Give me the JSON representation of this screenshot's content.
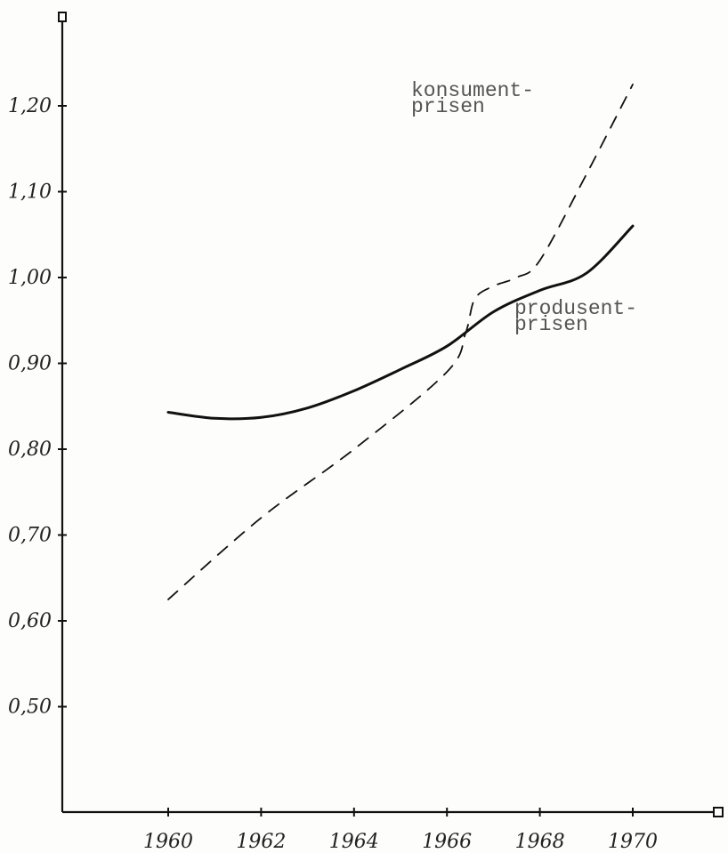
{
  "chart_data": {
    "type": "line",
    "title": "",
    "xlabel": "",
    "ylabel": "",
    "grid": false,
    "xlim": [
      1958.5,
      1972
    ],
    "ylim": [
      0.38,
      1.31
    ],
    "x_ticks": [
      1960,
      1962,
      1964,
      1966,
      1968,
      1970
    ],
    "x_tick_labels": [
      "1960",
      "1962",
      "1964",
      "1966",
      "1968",
      "1970"
    ],
    "y_ticks": [
      0.5,
      0.6,
      0.7,
      0.8,
      0.9,
      1.0,
      1.1,
      1.2
    ],
    "y_tick_labels": [
      "0,50",
      "0,60",
      "0,70",
      "0,80",
      "0,90",
      "1,00",
      "1,10",
      "1,20"
    ],
    "series": [
      {
        "name": "konsument-\nprisen",
        "style": "dashed",
        "x": [
          1960,
          1962,
          1964,
          1966,
          1966.4,
          1966.6,
          1967,
          1967.5,
          1968,
          1969,
          1970
        ],
        "y": [
          0.625,
          0.72,
          0.8,
          0.89,
          0.935,
          0.975,
          0.99,
          1.0,
          1.02,
          1.12,
          1.225
        ]
      },
      {
        "name": "produsent-\nprisen",
        "style": "solid",
        "x": [
          1960,
          1961,
          1962,
          1963,
          1964,
          1965,
          1966,
          1967,
          1968,
          1969,
          1970
        ],
        "y": [
          0.843,
          0.836,
          0.837,
          0.848,
          0.868,
          0.893,
          0.92,
          0.96,
          0.985,
          1.005,
          1.06
        ]
      }
    ]
  }
}
